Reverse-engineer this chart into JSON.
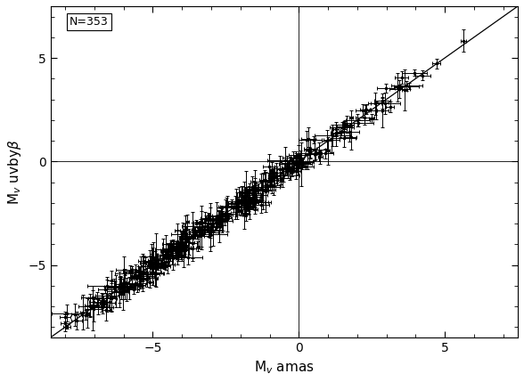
{
  "title": "",
  "xlabel": "M$_v$ amas",
  "ylabel": "M$_v$ uvby$\\beta$",
  "annotation": "N=353",
  "xlim": [
    -8.5,
    7.5
  ],
  "ylim": [
    -8.5,
    7.5
  ],
  "xticks": [
    -5,
    0,
    5
  ],
  "yticks": [
    -5,
    0,
    5
  ],
  "line_color": "black",
  "scatter_color": "black",
  "figsize": [
    5.88,
    4.29
  ],
  "dpi": 100,
  "seed": 42,
  "n_points": 353,
  "scatter_std": 0.3,
  "x_range_min": -8.0,
  "x_range_max": 6.5,
  "xerr_scale": 0.22,
  "yerr_scale": 0.38
}
